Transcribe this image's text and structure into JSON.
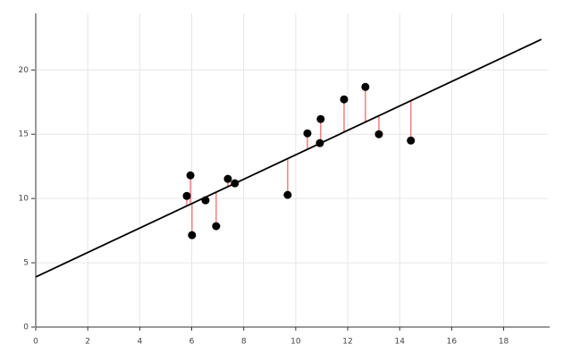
{
  "chart_data": {
    "type": "scatter",
    "x": [
      5.81,
      5.95,
      6.01,
      6.53,
      6.94,
      7.39,
      7.66,
      9.69,
      10.45,
      10.93,
      10.96,
      11.86,
      12.68,
      13.2,
      14.43
    ],
    "y": [
      10.2,
      11.8,
      7.15,
      9.86,
      7.85,
      11.53,
      11.18,
      10.28,
      15.07,
      14.31,
      16.18,
      17.71,
      18.68,
      15.0,
      14.51
    ],
    "color": "#000000",
    "fit": {
      "intercept": 3.9,
      "slope": 0.95,
      "color": "#000000"
    },
    "residual_color": "#f08080",
    "xlim": [
      0,
      19.7
    ],
    "ylim": [
      0,
      24.4
    ],
    "xticks": [
      0,
      2,
      4,
      6,
      8,
      10,
      12,
      14,
      16,
      18
    ],
    "yticks": [
      0,
      5,
      10,
      15,
      20
    ],
    "grid": true
  }
}
